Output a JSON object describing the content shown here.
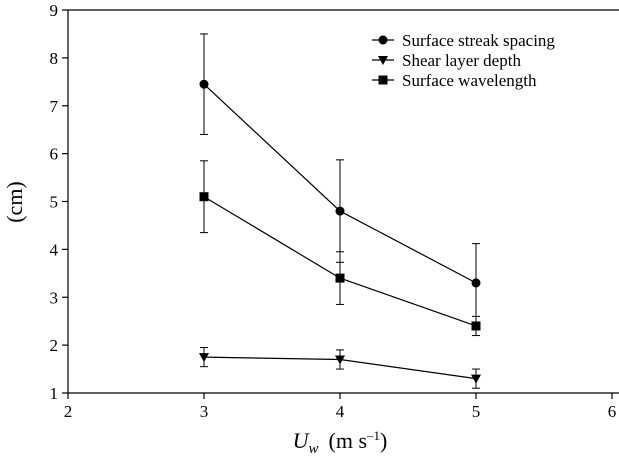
{
  "chart_data": {
    "type": "line",
    "x_label": [
      "U",
      "w",
      "(m s",
      "–1",
      ")"
    ],
    "y_label": "(cm)",
    "x": [
      3,
      4,
      5
    ],
    "series": [
      {
        "name": "Surface streak spacing",
        "marker": "circle",
        "color": "#000000",
        "values": [
          7.45,
          4.8,
          3.3
        ],
        "errors": [
          1.05,
          1.07,
          0.82
        ]
      },
      {
        "name": "Shear layer depth",
        "marker": "triangle-down",
        "color": "#000000",
        "values": [
          1.75,
          1.7,
          1.3
        ],
        "errors": [
          0.2,
          0.2,
          0.2
        ]
      },
      {
        "name": "Surface wavelength",
        "marker": "square",
        "color": "#000000",
        "values": [
          5.1,
          3.4,
          2.4
        ],
        "errors": [
          0.75,
          0.55,
          0.2
        ]
      }
    ],
    "xlim": [
      2,
      6
    ],
    "xticks": [
      2,
      3,
      4,
      5,
      6
    ],
    "ylim": [
      1,
      9
    ],
    "yticks": [
      1,
      2,
      3,
      4,
      5,
      6,
      7,
      8,
      9
    ],
    "legend": "upper right"
  }
}
